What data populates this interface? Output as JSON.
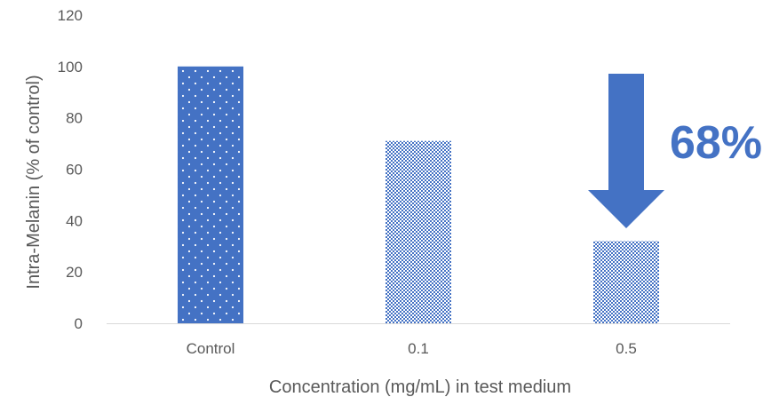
{
  "chart_data": {
    "type": "bar",
    "categories": [
      "Control",
      "0.1",
      "0.5"
    ],
    "values": [
      100,
      71,
      32
    ],
    "xlabel": "Concentration (mg/mL) in test medium",
    "ylabel": "Intra-Melanin (% of control)",
    "ylim": [
      0,
      120
    ],
    "yticks": [
      "0",
      "20",
      "40",
      "60",
      "80",
      "100",
      "120"
    ],
    "grid": false,
    "legend": "none",
    "bar_patterns": [
      "sparse-dots",
      "dense-dots",
      "dense-dots"
    ],
    "bar_color": "#4472C4",
    "annotation": {
      "text": "68%",
      "arrow": "down",
      "target_category": "0.5",
      "color": "#4472C4"
    }
  }
}
